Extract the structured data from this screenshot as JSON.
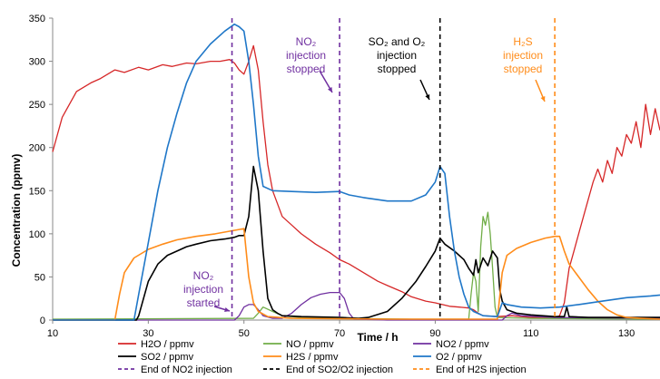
{
  "chart_data": {
    "type": "line",
    "xlabel": "Time / h",
    "ylabel": "Concentration (ppmv)",
    "xlim": [
      10,
      137
    ],
    "ylim": [
      0,
      350
    ],
    "x_ticks": [
      10,
      30,
      50,
      70,
      90,
      110,
      130
    ],
    "y_ticks": [
      0,
      50,
      100,
      150,
      200,
      250,
      300,
      350
    ],
    "series": [
      {
        "name": "H2O / ppmv",
        "color": "#d62728",
        "width": 1.3,
        "points": [
          [
            10,
            195
          ],
          [
            12,
            235
          ],
          [
            15,
            265
          ],
          [
            18,
            275
          ],
          [
            20,
            280
          ],
          [
            23,
            290
          ],
          [
            25,
            287
          ],
          [
            28,
            293
          ],
          [
            30,
            290
          ],
          [
            33,
            296
          ],
          [
            35,
            294
          ],
          [
            38,
            298
          ],
          [
            40,
            297
          ],
          [
            43,
            300
          ],
          [
            45,
            300
          ],
          [
            47,
            302
          ],
          [
            48,
            298
          ],
          [
            49,
            290
          ],
          [
            50,
            285
          ],
          [
            51,
            300
          ],
          [
            52,
            318
          ],
          [
            53,
            290
          ],
          [
            54,
            230
          ],
          [
            55,
            180
          ],
          [
            56,
            150
          ],
          [
            58,
            120
          ],
          [
            60,
            110
          ],
          [
            62,
            100
          ],
          [
            65,
            88
          ],
          [
            68,
            78
          ],
          [
            70,
            70
          ],
          [
            72,
            65
          ],
          [
            75,
            55
          ],
          [
            78,
            45
          ],
          [
            80,
            40
          ],
          [
            83,
            33
          ],
          [
            85,
            27
          ],
          [
            88,
            22
          ],
          [
            90,
            20
          ],
          [
            93,
            16
          ],
          [
            95,
            15
          ],
          [
            97,
            14
          ],
          [
            98,
            12
          ],
          [
            99,
            8
          ],
          [
            100,
            5
          ],
          [
            103,
            4
          ],
          [
            106,
            5
          ],
          [
            110,
            3
          ],
          [
            115,
            3
          ],
          [
            116,
            5
          ],
          [
            117,
            20
          ],
          [
            118,
            60
          ],
          [
            119,
            80
          ],
          [
            120,
            100
          ],
          [
            121,
            120
          ],
          [
            122,
            140
          ],
          [
            123,
            160
          ],
          [
            124,
            175
          ],
          [
            125,
            160
          ],
          [
            126,
            185
          ],
          [
            127,
            170
          ],
          [
            128,
            200
          ],
          [
            129,
            190
          ],
          [
            130,
            215
          ],
          [
            131,
            205
          ],
          [
            132,
            230
          ],
          [
            133,
            200
          ],
          [
            134,
            250
          ],
          [
            135,
            215
          ],
          [
            136,
            245
          ],
          [
            137,
            220
          ]
        ]
      },
      {
        "name": "NO / ppmv",
        "color": "#70ad47",
        "width": 1.3,
        "points": [
          [
            10,
            1
          ],
          [
            52,
            2
          ],
          [
            53,
            8
          ],
          [
            54,
            15
          ],
          [
            56,
            10
          ],
          [
            58,
            5
          ],
          [
            62,
            3
          ],
          [
            70,
            2
          ],
          [
            85,
            1
          ],
          [
            97,
            1
          ],
          [
            97.5,
            30
          ],
          [
            98,
            55
          ],
          [
            98.5,
            45
          ],
          [
            99,
            10
          ],
          [
            99.5,
            85
          ],
          [
            100,
            120
          ],
          [
            100.5,
            110
          ],
          [
            101,
            125
          ],
          [
            101.5,
            100
          ],
          [
            102,
            60
          ],
          [
            102.5,
            15
          ],
          [
            103,
            3
          ],
          [
            110,
            2
          ],
          [
            137,
            1
          ]
        ]
      },
      {
        "name": "NO2 / ppmv",
        "color": "#7030a0",
        "width": 1.3,
        "points": [
          [
            10,
            0
          ],
          [
            47,
            0
          ],
          [
            48,
            0
          ],
          [
            49,
            5
          ],
          [
            50,
            15
          ],
          [
            51,
            18
          ],
          [
            52,
            18
          ],
          [
            53,
            12
          ],
          [
            54,
            5
          ],
          [
            56,
            2
          ],
          [
            58,
            2
          ],
          [
            60,
            8
          ],
          [
            62,
            18
          ],
          [
            64,
            26
          ],
          [
            66,
            30
          ],
          [
            68,
            32
          ],
          [
            70,
            32
          ],
          [
            71,
            25
          ],
          [
            72,
            8
          ],
          [
            73,
            1
          ],
          [
            80,
            0
          ],
          [
            104,
            0
          ],
          [
            105,
            5
          ],
          [
            106,
            8
          ],
          [
            108,
            5
          ],
          [
            115,
            3
          ],
          [
            137,
            2
          ]
        ]
      },
      {
        "name": "SO2 / ppmv",
        "color": "#000000",
        "width": 1.6,
        "points": [
          [
            10,
            0
          ],
          [
            27.5,
            0
          ],
          [
            28,
            5
          ],
          [
            29,
            25
          ],
          [
            30,
            45
          ],
          [
            32,
            65
          ],
          [
            34,
            75
          ],
          [
            36,
            80
          ],
          [
            38,
            85
          ],
          [
            40,
            88
          ],
          [
            43,
            92
          ],
          [
            46,
            94
          ],
          [
            48,
            96
          ],
          [
            49,
            98
          ],
          [
            50,
            98
          ],
          [
            51,
            120
          ],
          [
            52,
            178
          ],
          [
            53,
            150
          ],
          [
            54,
            80
          ],
          [
            55,
            25
          ],
          [
            56,
            12
          ],
          [
            57,
            8
          ],
          [
            58,
            5
          ],
          [
            62,
            4
          ],
          [
            70,
            3
          ],
          [
            74,
            2
          ],
          [
            76,
            3
          ],
          [
            80,
            10
          ],
          [
            83,
            25
          ],
          [
            86,
            45
          ],
          [
            88,
            62
          ],
          [
            90,
            80
          ],
          [
            91,
            95
          ],
          [
            92,
            88
          ],
          [
            94,
            80
          ],
          [
            96,
            70
          ],
          [
            97,
            60
          ],
          [
            98,
            52
          ],
          [
            98.5,
            70
          ],
          [
            99,
            55
          ],
          [
            100,
            72
          ],
          [
            101,
            63
          ],
          [
            102,
            80
          ],
          [
            103,
            72
          ],
          [
            103.5,
            35
          ],
          [
            104,
            22
          ],
          [
            105,
            12
          ],
          [
            107,
            8
          ],
          [
            110,
            6
          ],
          [
            115,
            4
          ],
          [
            117,
            4
          ],
          [
            117.5,
            15
          ],
          [
            118,
            4
          ],
          [
            122,
            3
          ],
          [
            130,
            3
          ],
          [
            137,
            3
          ]
        ]
      },
      {
        "name": "H2S / ppmv",
        "color": "#ff8c1a",
        "width": 1.6,
        "points": [
          [
            10,
            0
          ],
          [
            23,
            0
          ],
          [
            24,
            30
          ],
          [
            25,
            55
          ],
          [
            27,
            72
          ],
          [
            30,
            82
          ],
          [
            33,
            88
          ],
          [
            36,
            93
          ],
          [
            40,
            97
          ],
          [
            44,
            100
          ],
          [
            47,
            103
          ],
          [
            49,
            105
          ],
          [
            50,
            106
          ],
          [
            51,
            50
          ],
          [
            52,
            20
          ],
          [
            53,
            10
          ],
          [
            55,
            4
          ],
          [
            60,
            2
          ],
          [
            80,
            1
          ],
          [
            97,
            1
          ],
          [
            103,
            1
          ],
          [
            104,
            55
          ],
          [
            105,
            75
          ],
          [
            107,
            83
          ],
          [
            110,
            90
          ],
          [
            113,
            95
          ],
          [
            115,
            97
          ],
          [
            116,
            97
          ],
          [
            117,
            80
          ],
          [
            118,
            65
          ],
          [
            120,
            50
          ],
          [
            122,
            35
          ],
          [
            124,
            22
          ],
          [
            126,
            12
          ],
          [
            128,
            6
          ],
          [
            130,
            3
          ],
          [
            133,
            2
          ],
          [
            137,
            1
          ]
        ]
      },
      {
        "name": "O2 / ppmv",
        "color": "#1f77c8",
        "width": 1.6,
        "points": [
          [
            10,
            0
          ],
          [
            27,
            0
          ],
          [
            28,
            30
          ],
          [
            30,
            90
          ],
          [
            32,
            150
          ],
          [
            34,
            200
          ],
          [
            36,
            240
          ],
          [
            38,
            275
          ],
          [
            40,
            300
          ],
          [
            43,
            320
          ],
          [
            46,
            335
          ],
          [
            48,
            343
          ],
          [
            49,
            340
          ],
          [
            50,
            335
          ],
          [
            51,
            300
          ],
          [
            52,
            250
          ],
          [
            53,
            190
          ],
          [
            54,
            155
          ],
          [
            56,
            150
          ],
          [
            60,
            149
          ],
          [
            65,
            148
          ],
          [
            70,
            149
          ],
          [
            72,
            145
          ],
          [
            75,
            142
          ],
          [
            80,
            138
          ],
          [
            85,
            138
          ],
          [
            88,
            145
          ],
          [
            90,
            160
          ],
          [
            91,
            178
          ],
          [
            92,
            170
          ],
          [
            93,
            120
          ],
          [
            94,
            80
          ],
          [
            95,
            50
          ],
          [
            96,
            30
          ],
          [
            97,
            15
          ],
          [
            98,
            10
          ],
          [
            100,
            5
          ],
          [
            103,
            4
          ],
          [
            104,
            20
          ],
          [
            105,
            18
          ],
          [
            108,
            15
          ],
          [
            112,
            14
          ],
          [
            116,
            15
          ],
          [
            120,
            18
          ],
          [
            125,
            22
          ],
          [
            130,
            26
          ],
          [
            135,
            28
          ],
          [
            137,
            29
          ]
        ]
      }
    ],
    "vertical_lines": [
      {
        "name": "End of NO2 injection",
        "color": "#7030a0",
        "x": 47.5
      },
      {
        "name": "NO2 injection stopped",
        "color": "#7030a0",
        "x": 70
      },
      {
        "name": "End of SO2/O2 injection",
        "color": "#000000",
        "x": 91
      },
      {
        "name": "End of H2S injection",
        "color": "#ff8c1a",
        "x": 115
      }
    ],
    "legend": {
      "placement": "bottom",
      "entries": [
        {
          "label": "H2O / ppmv",
          "color": "#d62728",
          "dashed": false
        },
        {
          "label": "NO / ppmv",
          "color": "#70ad47",
          "dashed": false
        },
        {
          "label": "NO2 / ppmv",
          "color": "#7030a0",
          "dashed": false
        },
        {
          "label": "SO2 / ppmv",
          "color": "#000000",
          "dashed": false
        },
        {
          "label": "H2S / ppmv",
          "color": "#ff8c1a",
          "dashed": false
        },
        {
          "label": "O2 / ppmv",
          "color": "#1f77c8",
          "dashed": false
        },
        {
          "label": "End of NO2 injection",
          "color": "#7030a0",
          "dashed": true
        },
        {
          "label": "End of SO2/O2 injection",
          "color": "#000000",
          "dashed": true
        },
        {
          "label": "End of H2S injection",
          "color": "#ff8c1a",
          "dashed": true
        }
      ]
    },
    "annotations": [
      {
        "id": "no2-stopped",
        "color": "#7030a0",
        "lines": [
          "NO₂",
          "injection",
          "stopped"
        ]
      },
      {
        "id": "so2-o2-stopped",
        "color": "#000000",
        "lines": [
          "SO₂ and O₂",
          "injection",
          "stopped"
        ]
      },
      {
        "id": "h2s-stopped",
        "color": "#ff8c1a",
        "lines": [
          "H₂S",
          "injection",
          "stopped"
        ]
      },
      {
        "id": "no2-started",
        "color": "#7030a0",
        "lines": [
          "NO₂",
          "injection",
          "started"
        ]
      }
    ]
  }
}
